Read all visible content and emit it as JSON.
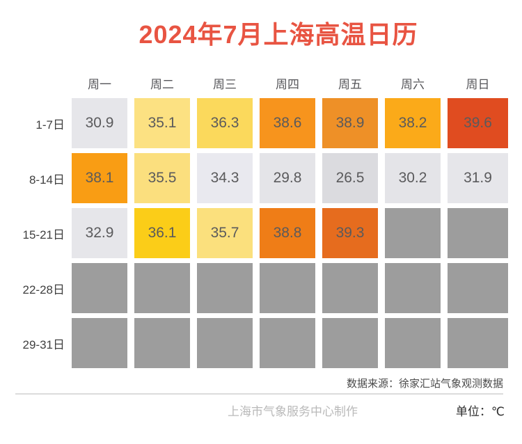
{
  "title": "2024年7月上海高温日历",
  "colors": {
    "title": "#e85442",
    "empty_cell": "#9d9d9d",
    "divider": "#dcdcdc"
  },
  "footer": {
    "source": "数据来源：徐家汇站气象观测数据",
    "maker": "上海市气象服务中心制作",
    "unit": "单位：℃"
  },
  "chart_data": {
    "type": "heatmap",
    "title": "2024年7月上海高温日历",
    "subtitle": "",
    "unit": "℃",
    "legend_position": "none",
    "grid": false,
    "columns": [
      "周一",
      "周二",
      "周三",
      "周四",
      "周五",
      "周六",
      "周日"
    ],
    "rows": [
      {
        "label": "1-7日",
        "values": [
          30.9,
          35.1,
          36.3,
          38.6,
          38.9,
          38.2,
          39.6
        ],
        "colors": [
          "#e6e6ea",
          "#fce182",
          "#fbd95c",
          "#f7941d",
          "#ee9027",
          "#fbaa19",
          "#e04c20"
        ]
      },
      {
        "label": "8-14日",
        "values": [
          38.1,
          35.5,
          34.3,
          29.8,
          26.5,
          30.2,
          31.9
        ],
        "colors": [
          "#f99d14",
          "#fbdf7e",
          "#e9e9ef",
          "#e4e4e8",
          "#dbdbdf",
          "#e4e4e8",
          "#e6e6ea"
        ]
      },
      {
        "label": "15-21日",
        "values": [
          32.9,
          36.1,
          35.7,
          38.8,
          39.3,
          null,
          null
        ],
        "colors": [
          "#e6e6ea",
          "#fbcd18",
          "#fbe07d",
          "#ef7d17",
          "#e66c1e",
          "#9d9d9d",
          "#9d9d9d"
        ]
      },
      {
        "label": "22-28日",
        "values": [
          null,
          null,
          null,
          null,
          null,
          null,
          null
        ],
        "colors": [
          "#9d9d9d",
          "#9d9d9d",
          "#9d9d9d",
          "#9d9d9d",
          "#9d9d9d",
          "#9d9d9d",
          "#9d9d9d"
        ]
      },
      {
        "label": "29-31日",
        "values": [
          null,
          null,
          null,
          null,
          null,
          null,
          null
        ],
        "colors": [
          "#9d9d9d",
          "#9d9d9d",
          "#9d9d9d",
          "#9d9d9d",
          "#9d9d9d",
          "#9d9d9d",
          "#9d9d9d"
        ]
      }
    ]
  }
}
